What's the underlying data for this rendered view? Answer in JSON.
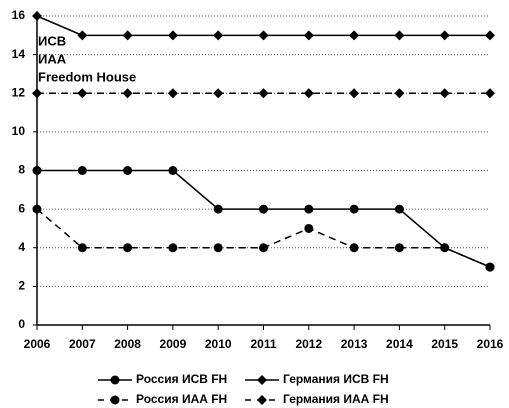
{
  "chart_data": {
    "type": "line",
    "annotations": [
      "ИСВ",
      "ИАА",
      "Freedom House"
    ],
    "x": [
      2006,
      2007,
      2008,
      2009,
      2010,
      2011,
      2012,
      2013,
      2014,
      2015,
      2016
    ],
    "xlim": [
      2006,
      2016
    ],
    "xticks": [
      2006,
      2007,
      2008,
      2009,
      2010,
      2011,
      2012,
      2013,
      2014,
      2015,
      2016
    ],
    "ylim": [
      0,
      16
    ],
    "yticks": [
      0,
      2,
      4,
      6,
      8,
      10,
      12,
      14,
      16
    ],
    "grid": true,
    "legend": "bottom",
    "series": [
      {
        "name": "Россия ИСВ FH",
        "color": "#000000",
        "style": "solid",
        "marker": "circle",
        "values": [
          8,
          8,
          8,
          8,
          6,
          6,
          6,
          6,
          6,
          4,
          3
        ]
      },
      {
        "name": "Германия ИСВ FH",
        "color": "#000000",
        "style": "solid",
        "marker": "diamond",
        "values": [
          16,
          15,
          15,
          15,
          15,
          15,
          15,
          15,
          15,
          15,
          15
        ]
      },
      {
        "name": "Россия ИАА FH",
        "color": "#000000",
        "style": "dashed",
        "marker": "circle",
        "values": [
          6,
          4,
          4,
          4,
          4,
          4,
          5,
          4,
          4,
          4,
          3
        ]
      },
      {
        "name": "Германия ИАА FH",
        "color": "#000000",
        "style": "dashed",
        "marker": "diamond",
        "values": [
          12,
          12,
          12,
          12,
          12,
          12,
          12,
          12,
          12,
          12,
          12
        ]
      }
    ]
  }
}
